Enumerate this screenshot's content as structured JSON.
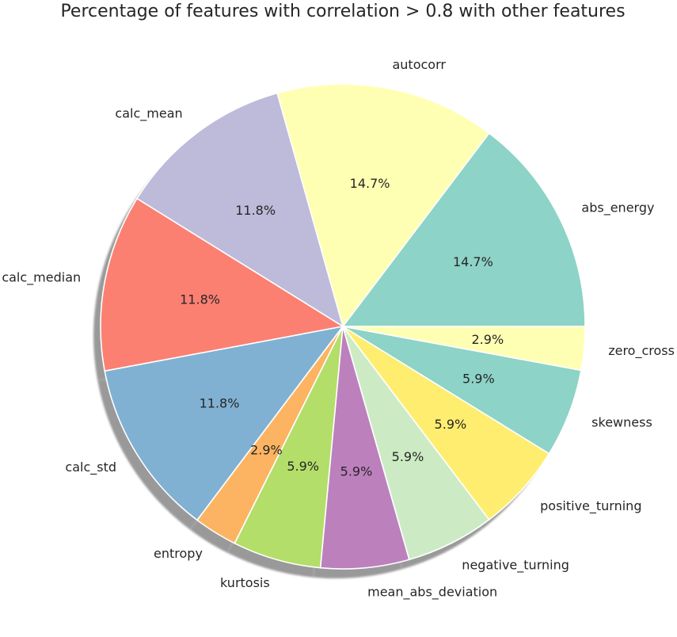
{
  "chart_data": {
    "type": "pie",
    "title": "Percentage of features with correlation > 0.8 with other features",
    "shadow": true,
    "start_angle": 0,
    "direction": "counterclockwise",
    "slices": [
      {
        "label": "abs_energy",
        "value": 14.7,
        "pct_label": "14.7%",
        "color": "#8dd3c7"
      },
      {
        "label": "autocorr",
        "value": 14.7,
        "pct_label": "14.7%",
        "color": "#ffffb3"
      },
      {
        "label": "calc_mean",
        "value": 11.8,
        "pct_label": "11.8%",
        "color": "#bebada"
      },
      {
        "label": "calc_median",
        "value": 11.8,
        "pct_label": "11.8%",
        "color": "#fb8072"
      },
      {
        "label": "calc_std",
        "value": 11.8,
        "pct_label": "11.8%",
        "color": "#80b1d3"
      },
      {
        "label": "entropy",
        "value": 2.9,
        "pct_label": "2.9%",
        "color": "#fdb462"
      },
      {
        "label": "kurtosis",
        "value": 5.9,
        "pct_label": "5.9%",
        "color": "#b3de69"
      },
      {
        "label": "mean_abs_deviation",
        "value": 5.9,
        "pct_label": "5.9%",
        "color": "#bc80bd"
      },
      {
        "label": "negative_turning",
        "value": 5.9,
        "pct_label": "5.9%",
        "color": "#ccebc5"
      },
      {
        "label": "positive_turning",
        "value": 5.9,
        "pct_label": "5.9%",
        "color": "#ffed6f"
      },
      {
        "label": "skewness",
        "value": 5.9,
        "pct_label": "5.9%",
        "color": "#8dd3c7"
      },
      {
        "label": "zero_cross",
        "value": 2.9,
        "pct_label": "2.9%",
        "color": "#ffffb3"
      }
    ]
  }
}
